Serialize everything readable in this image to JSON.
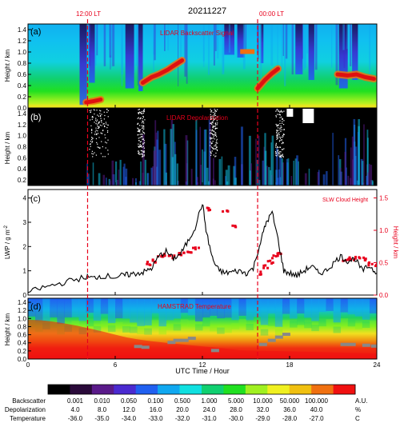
{
  "figure": {
    "date_title": "20211227",
    "marker_noon": "12:00 LT",
    "marker_midnight": "00:00 LT",
    "x_axis": {
      "label": "UTC Time / Hour",
      "range": [
        0,
        24
      ],
      "ticks": [
        "0",
        "6",
        "12",
        "18",
        "24"
      ],
      "tick_values": [
        0,
        6,
        12,
        18,
        24
      ]
    },
    "marker_times_utc": [
      4.1,
      15.8
    ],
    "panels": {
      "a": {
        "letter": "(a)",
        "title": "LIDAR Backscatter Signal",
        "ylabel": "Height / km",
        "yticks": [
          "0.0",
          "0.2",
          "0.4",
          "0.6",
          "0.8",
          "1.0",
          "1.2",
          "1.4"
        ],
        "ylim": [
          0,
          1.5
        ]
      },
      "b": {
        "letter": "(b)",
        "title": "LIDAR Depolarization",
        "ylabel": "Height / km",
        "yticks": [
          "0.2",
          "0.4",
          "0.6",
          "0.8",
          "1.0",
          "1.2",
          "1.4"
        ],
        "ylim": [
          0.1,
          1.5
        ]
      },
      "c": {
        "letter": "(c)",
        "ylabel_left": "LWP / g m",
        "ylabel_left_sup": "-2",
        "ylabel_right": "Height / km",
        "legend_right": "SLW Cloud Height",
        "yticks_left": [
          "0",
          "1",
          "2",
          "3",
          "4"
        ],
        "yticks_right": [
          "0.0",
          "0.5",
          "1.0",
          "1.5"
        ]
      },
      "d": {
        "letter": "(d)",
        "title": "HAMSTRAD Temperature",
        "ylabel": "Height / km",
        "yticks": [
          "0.0",
          "0.2",
          "0.4",
          "0.6",
          "0.8",
          "1.0",
          "1.2",
          "1.4"
        ],
        "ylim": [
          0,
          1.5
        ]
      }
    },
    "colorbar": {
      "colors": [
        "#000000",
        "#2a0a3a",
        "#5a1a8a",
        "#4a2ad0",
        "#2060f0",
        "#10a8f0",
        "#10e0e0",
        "#10d070",
        "#20e020",
        "#a0f020",
        "#f0f020",
        "#f0c010",
        "#f07010",
        "#f01010"
      ],
      "rows": [
        {
          "name": "Backscatter",
          "values": [
            "0.001",
            "0.010",
            "0.050",
            "0.100",
            "0.500",
            "1.000",
            "5.000",
            "10.000",
            "50.000",
            "100.000"
          ],
          "unit": "A.U."
        },
        {
          "name": "Depolarization",
          "values": [
            "4.0",
            "8.0",
            "12.0",
            "16.0",
            "20.0",
            "24.0",
            "28.0",
            "32.0",
            "36.0",
            "40.0"
          ],
          "unit": "%"
        },
        {
          "name": "Temperature",
          "values": [
            "-36.0",
            "-35.0",
            "-34.0",
            "-33.0",
            "-32.0",
            "-31.0",
            "-30.0",
            "-29.0",
            "-28.0",
            "-27.0"
          ],
          "unit": "C"
        }
      ]
    }
  },
  "chart_data": [
    {
      "type": "heatmap",
      "title": "LIDAR Backscatter Signal",
      "xlabel": "UTC Time / Hour",
      "ylabel": "Height / km",
      "xlim": [
        0,
        24
      ],
      "ylim": [
        0,
        1.5
      ],
      "note_layers": [
        {
          "name": "strong layer",
          "x": [
            4.0,
            4.5,
            5.0
          ],
          "y": [
            0.1,
            0.12,
            0.15
          ]
        },
        {
          "name": "strong layer",
          "x": [
            7.9,
            8.5,
            9.0,
            9.6,
            10.0,
            10.6
          ],
          "y": [
            0.45,
            0.55,
            0.6,
            0.68,
            0.75,
            0.85
          ]
        },
        {
          "name": "strong layer",
          "x": [
            15.8,
            16.3,
            16.8,
            17.2
          ],
          "y": [
            0.35,
            0.5,
            0.62,
            0.7
          ]
        },
        {
          "name": "strong layer",
          "x": [
            21.3,
            22.0,
            22.6,
            23.2,
            23.8
          ],
          "y": [
            0.6,
            0.58,
            0.6,
            0.55,
            0.52
          ]
        }
      ]
    },
    {
      "type": "heatmap",
      "title": "LIDAR Depolarization",
      "xlabel": "UTC Time / Hour",
      "ylabel": "Height / km",
      "xlim": [
        0,
        24
      ],
      "ylim": [
        0.1,
        1.5
      ]
    },
    {
      "type": "line",
      "xlabel": "UTC Time / Hour",
      "ylabel": "LWP / g m-2",
      "xlim": [
        0,
        24
      ],
      "ylim": [
        0,
        4
      ],
      "series": [
        {
          "x": [
            0,
            1,
            2,
            3,
            4,
            4.5,
            5,
            6,
            6.5,
            7,
            7.5,
            8,
            8.5,
            9,
            9.5,
            10,
            10.5,
            11,
            11.5,
            12,
            12.3,
            12.7,
            13,
            13.5,
            14,
            14.5,
            15,
            15.5,
            16,
            16.4,
            16.8,
            17.2,
            17.6,
            18,
            18.5,
            19,
            19.5,
            20,
            20.5,
            21,
            21.5,
            22,
            22.5,
            23,
            23.5,
            24
          ],
          "y": [
            0.1,
            0.3,
            0.45,
            0.6,
            0.75,
            0.7,
            0.8,
            0.75,
            0.8,
            0.85,
            0.9,
            0.95,
            1.1,
            1.6,
            1.8,
            1.5,
            1.7,
            2.2,
            2.8,
            3.8,
            2.5,
            1.5,
            1.1,
            0.9,
            0.95,
            1.0,
            0.9,
            1.1,
            2.2,
            3.0,
            3.4,
            2.3,
            1.0,
            0.9,
            0.8,
            1.0,
            1.2,
            0.9,
            1.0,
            1.3,
            1.6,
            1.4,
            1.5,
            1.0,
            1.2,
            0.9
          ]
        },
        {
          "name": "SLW Cloud Height",
          "axis": "right",
          "x": [
            8.3,
            8.6,
            9.0,
            9.4,
            9.8,
            10.2,
            10.6,
            11.0,
            11.5,
            12.3,
            13.5,
            14.2,
            16.0,
            16.3,
            16.6,
            16.9,
            17.2,
            21.8,
            22.2,
            22.6,
            23.0,
            23.5,
            23.9
          ],
          "y": [
            0.5,
            0.55,
            0.62,
            0.63,
            0.6,
            0.65,
            0.66,
            0.7,
            0.75,
            1.35,
            1.3,
            1.1,
            0.35,
            0.45,
            0.52,
            0.6,
            0.65,
            0.55,
            0.58,
            0.6,
            0.57,
            0.5,
            0.48
          ]
        }
      ]
    },
    {
      "type": "heatmap",
      "title": "HAMSTRAD Temperature",
      "xlabel": "UTC Time / Hour",
      "ylabel": "Height / km",
      "xlim": [
        0,
        24
      ],
      "ylim": [
        0,
        1.5
      ]
    }
  ]
}
